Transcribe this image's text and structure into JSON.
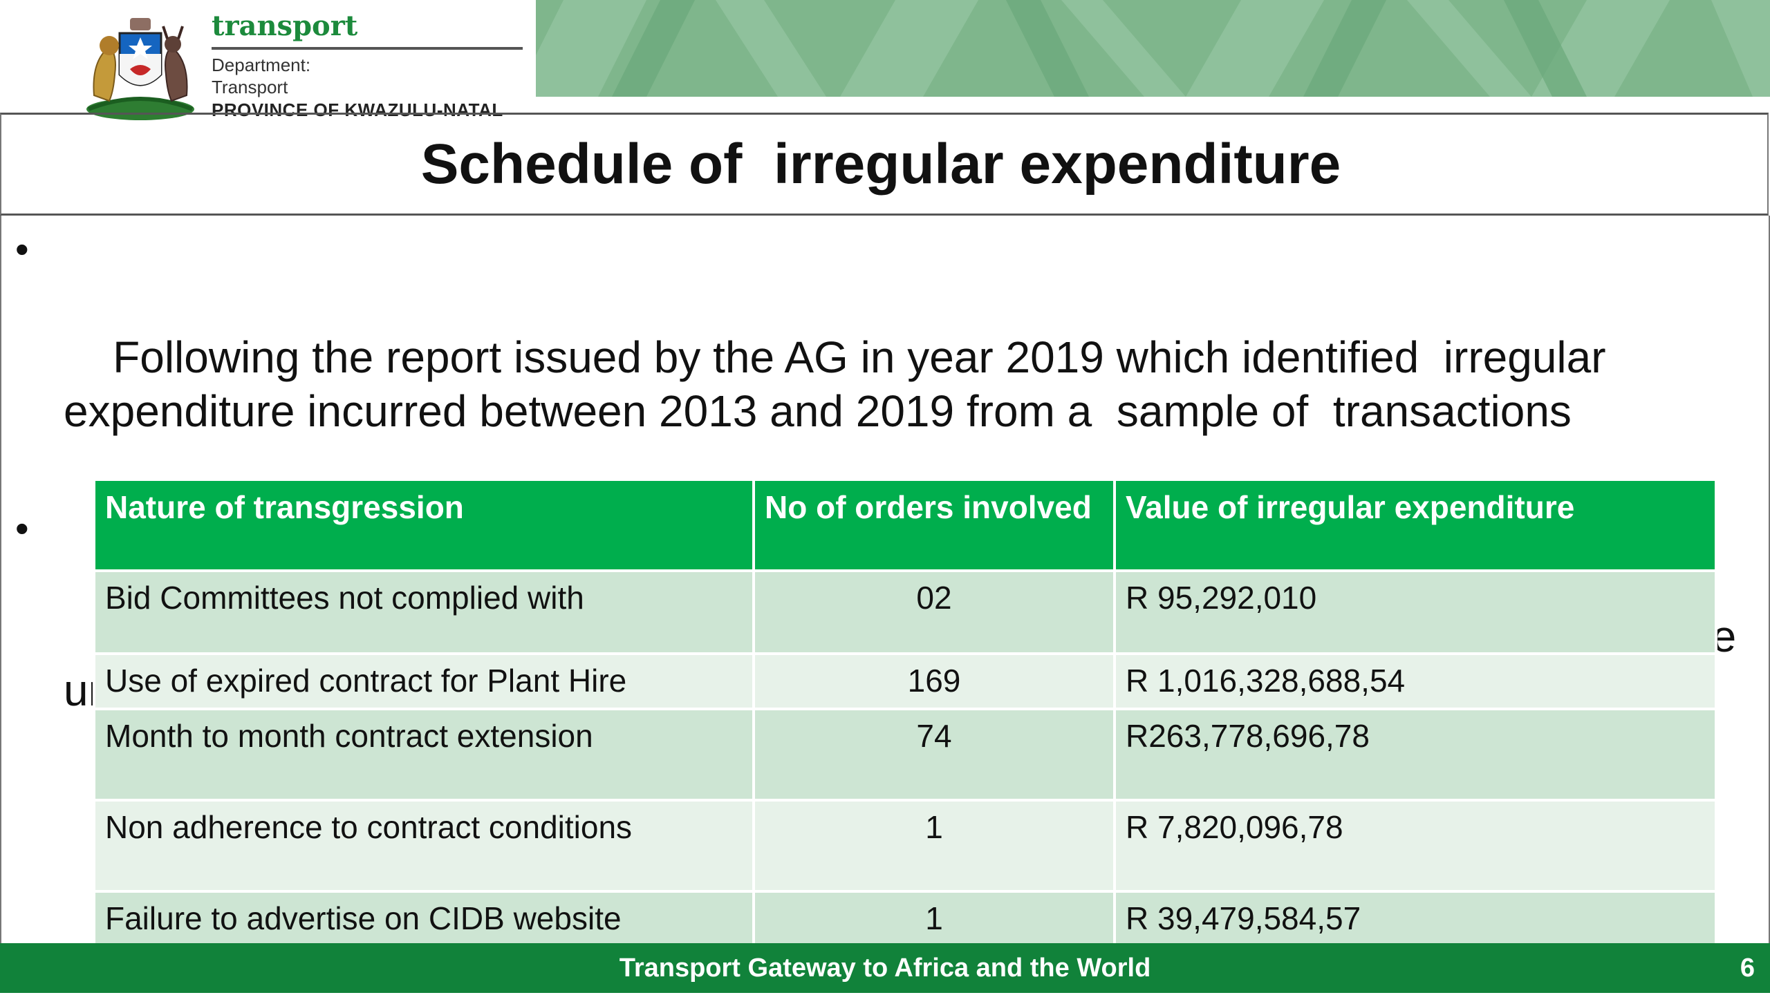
{
  "header": {
    "brand_name": "transport",
    "department_label": "Department:",
    "department_name": "Transport",
    "province": "PROVINCE OF KWAZULU-NATAL"
  },
  "slide": {
    "title": "Schedule of  irregular expenditure",
    "bullets": [
      "Following the report issued by the AG in year 2019 which identified  irregular expenditure incurred between 2013 and 2019 from a  sample of  transactions",
      "The department identified irregular expenditure and further investigations had to be undertaken to make a determination on the next action."
    ]
  },
  "table": {
    "headers": [
      "Nature of transgression",
      "No of orders involved",
      "Value of irregular expenditure"
    ],
    "rows": [
      [
        "Bid Committees not complied with",
        "02",
        " R 95,292,010"
      ],
      [
        "Use of expired contract for Plant Hire",
        "169",
        " R 1,016,328,688,54"
      ],
      [
        "Month to month contract extension",
        "74",
        " R263,778,696,78"
      ],
      [
        "Non adherence to contract conditions",
        "1",
        "R 7,820,096,78"
      ],
      [
        "Failure to advertise on CIDB website",
        "1",
        "R 39,479,584,57"
      ]
    ]
  },
  "footer": {
    "tagline": "Transport Gateway to Africa and the World",
    "page_number": "6"
  },
  "colors": {
    "brand_green": "#1c8a3c",
    "table_header": "#00ae4d",
    "row_dark": "#cde5d3",
    "row_light": "#e7f2e9",
    "footer": "#11823a",
    "banner": "#7fb68c"
  }
}
